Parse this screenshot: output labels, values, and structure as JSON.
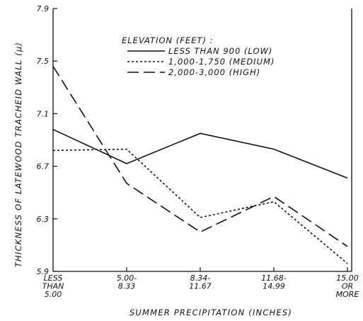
{
  "chart_data": {
    "type": "line",
    "title": "",
    "xlabel": "SUMMER PRECIPITATION (INCHES)",
    "ylabel": "THICKNESS OF LATEWOOD TRACHEID WALL (μ)",
    "categories": [
      [
        "LESS",
        "THAN",
        "5.00"
      ],
      [
        "5.00-",
        "8.33"
      ],
      [
        "8.34-",
        "11.67"
      ],
      [
        "11.68-",
        "14.99"
      ],
      [
        "15.00",
        "OR",
        "MORE"
      ]
    ],
    "ylim": [
      5.9,
      7.9
    ],
    "yticks": [
      "5.9",
      "6.3",
      "6.7",
      "7.1",
      "7.5",
      "7.9"
    ],
    "grid": false,
    "legend": {
      "title": "ELEVATION (FEET) :",
      "placement": "top-right"
    },
    "series": [
      {
        "name": "LESS THAN 900 (LOW)",
        "style": "solid",
        "values": [
          6.98,
          6.72,
          6.95,
          6.83,
          6.61
        ]
      },
      {
        "name": "1,000-1,750 (MEDIUM)",
        "style": "dotted",
        "values": [
          6.82,
          6.83,
          6.31,
          6.43,
          5.96
        ]
      },
      {
        "name": "2,000-3,000 (HIGH)",
        "style": "dashed",
        "values": [
          7.46,
          6.57,
          6.2,
          6.47,
          6.09
        ]
      }
    ]
  }
}
